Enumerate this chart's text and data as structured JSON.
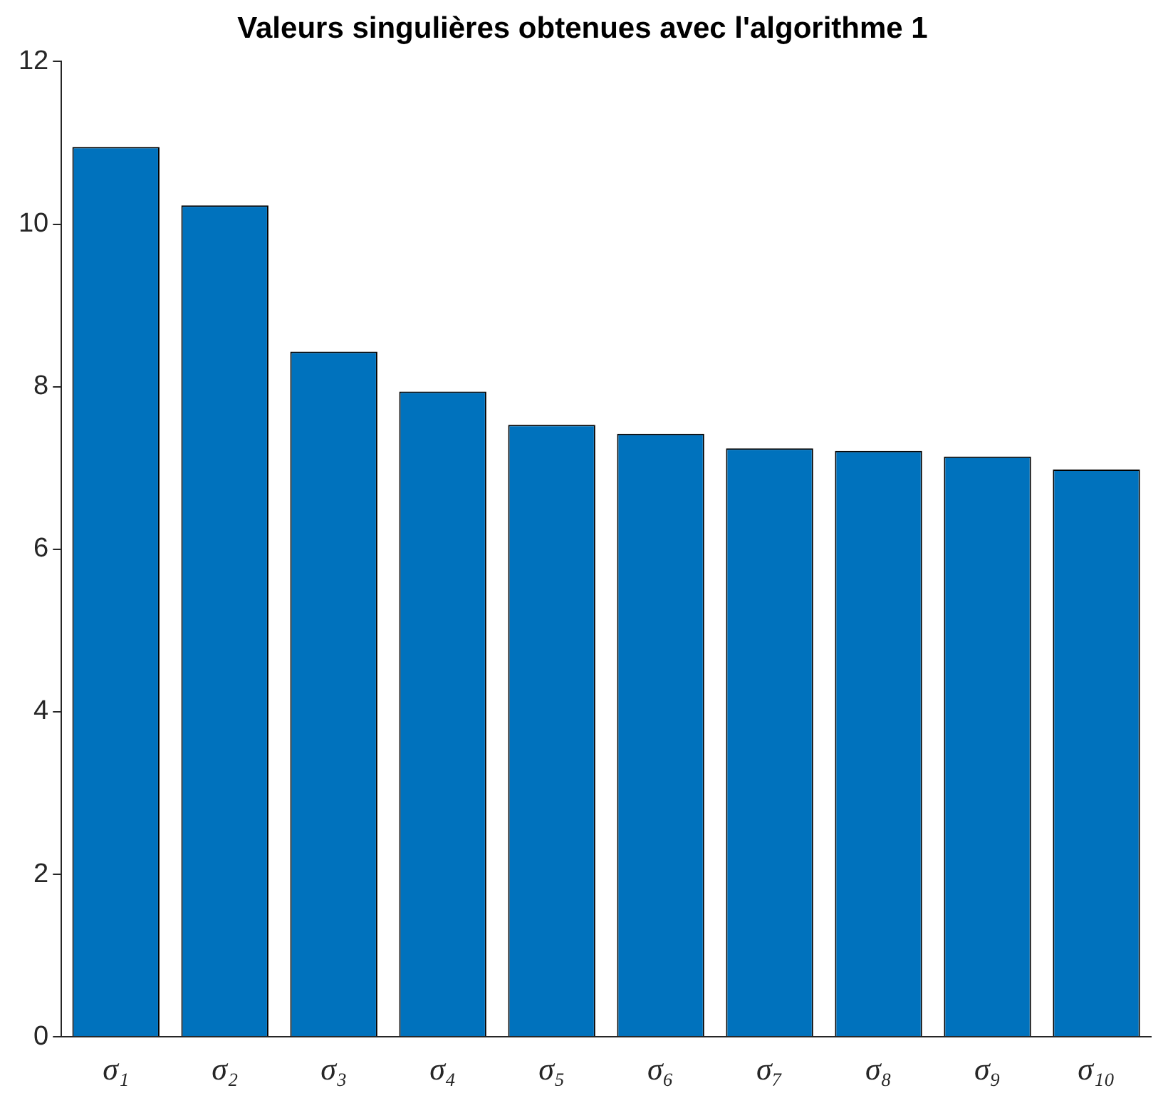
{
  "chart_data": {
    "type": "bar",
    "title": "Valeurs singulières obtenues avec l'algorithme 1",
    "categories": [
      "σ₁",
      "σ₂",
      "σ₃",
      "σ₄",
      "σ₅",
      "σ₆",
      "σ₇",
      "σ₈",
      "σ₉",
      "σ₁₀"
    ],
    "values": [
      10.95,
      10.23,
      8.43,
      7.94,
      7.53,
      7.42,
      7.24,
      7.21,
      7.14,
      6.98
    ],
    "color": "#0072bd",
    "ylim": [
      0,
      12
    ],
    "yticks": [
      0,
      2,
      4,
      6,
      8,
      10,
      12
    ]
  }
}
